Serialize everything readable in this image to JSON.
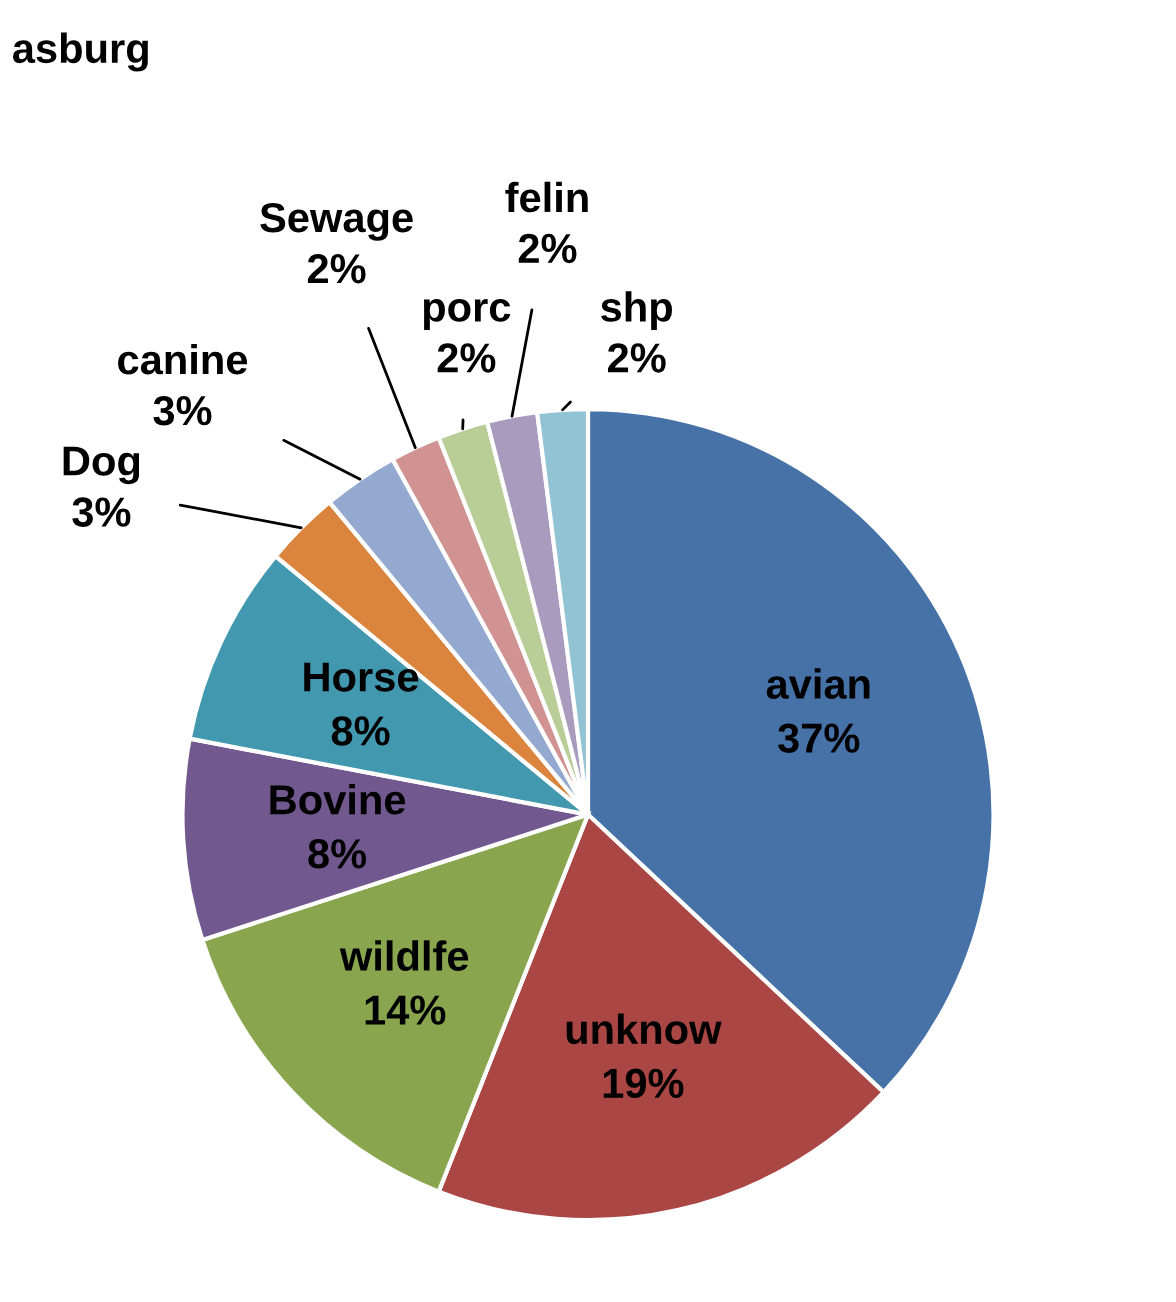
{
  "chart_data": {
    "type": "pie",
    "title": "asburg",
    "categories": [
      "avian",
      "unknow",
      "wildlfe",
      "Bovine",
      "Horse",
      "Dog",
      "canine",
      "Sewage",
      "porc",
      "felin",
      "shp"
    ],
    "values": [
      37,
      19,
      14,
      8,
      8,
      3,
      3,
      2,
      2,
      2,
      2
    ],
    "colors": [
      "#4672a8",
      "#aa4644",
      "#89a54e",
      "#71588f",
      "#4198af",
      "#db843d",
      "#93a9cf",
      "#d19392",
      "#b9cd96",
      "#a99bbd",
      "#92c3d4"
    ],
    "value_labels": [
      "37%",
      "19%",
      "14%",
      "8%",
      "8%",
      "3%",
      "3%",
      "2%",
      "2%",
      "2%",
      "2%"
    ],
    "legend": false
  }
}
